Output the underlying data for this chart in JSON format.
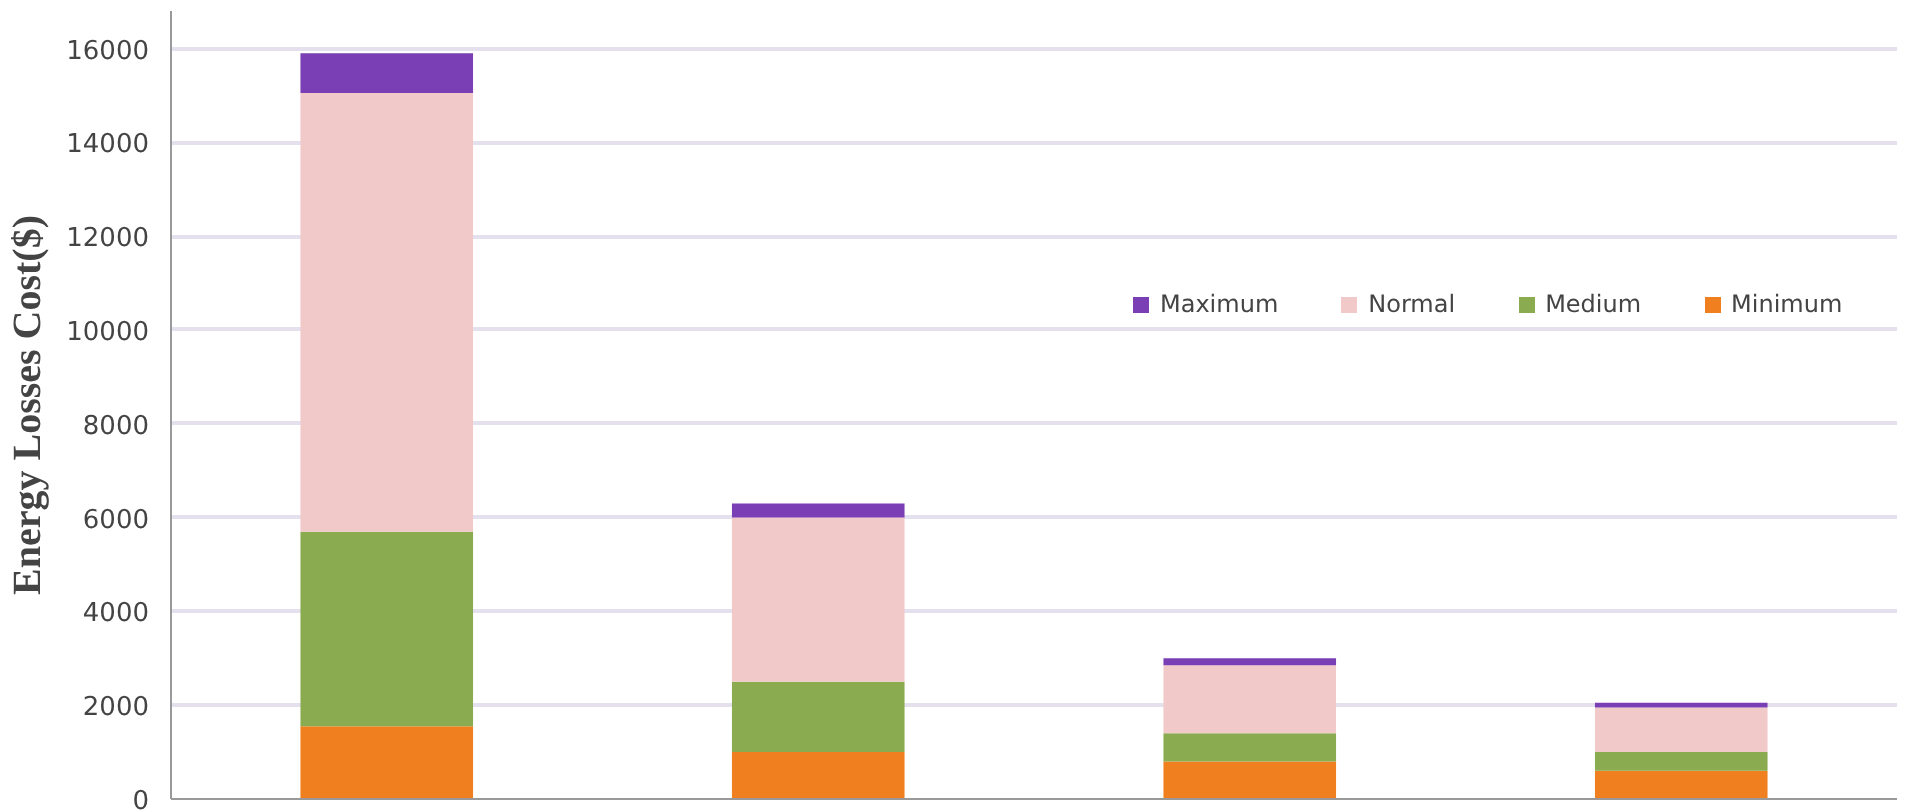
{
  "chart_data": {
    "type": "bar",
    "stacked": true,
    "ylabel": "Energy Losses Cost($)",
    "categories": [
      null,
      null,
      null,
      null
    ],
    "series": [
      {
        "name": "Minimum",
        "color": "#f0801f",
        "values": [
          1550,
          1000,
          800,
          600
        ]
      },
      {
        "name": "Medium",
        "color": "#8aab4f",
        "values": [
          4150,
          1500,
          600,
          400
        ]
      },
      {
        "name": "Normal",
        "color": "#f2c9c9",
        "values": [
          9350,
          3500,
          1450,
          950
        ]
      },
      {
        "name": "Maximum",
        "color": "#7b3fb5",
        "values": [
          850,
          300,
          150,
          100
        ]
      }
    ],
    "ylim": [
      0,
      16800
    ],
    "yticks": [
      0,
      2000,
      4000,
      6000,
      8000,
      10000,
      12000,
      14000,
      16000
    ],
    "grid": "y",
    "legend": "right",
    "tick_labels": "y"
  }
}
